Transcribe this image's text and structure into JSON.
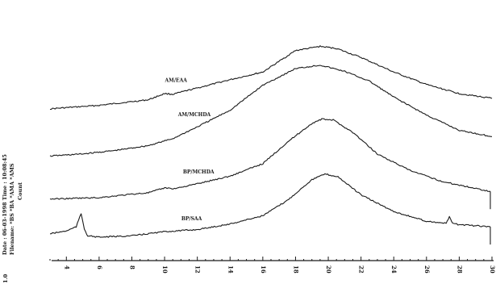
{
  "chart_data": {
    "type": "line",
    "title": "",
    "xlabel": "",
    "ylabel": "Count",
    "xlim": [
      3,
      30
    ],
    "x_ticks": [
      "4",
      "6",
      "8",
      "10",
      "12",
      "14",
      "16",
      "18",
      "20",
      "22",
      "24",
      "26",
      "28",
      "30"
    ],
    "y_tick_label": "1.0",
    "grid": false,
    "header_lines": [
      "Date : 06-03-1998  Time : 10:08:45",
      "Filename: *BS *BA *AMA *AMS"
    ],
    "series": [
      {
        "name": "AM/EAA",
        "label_x": 11.5,
        "x": [
          3,
          6,
          9,
          10,
          10.5,
          12,
          14,
          16,
          18,
          19.5,
          20.5,
          22,
          24,
          26,
          28,
          30
        ],
        "y": [
          9.6,
          9.85,
          10.25,
          10.7,
          10.65,
          11.1,
          11.7,
          12.25,
          13.8,
          14.1,
          13.95,
          13.3,
          12.25,
          11.35,
          10.7,
          10.35
        ]
      },
      {
        "name": "AM/MCHDA",
        "label_x": 12.3,
        "x": [
          3,
          5,
          7,
          9,
          10.5,
          12,
          14,
          16,
          18,
          19.5,
          21,
          22.5,
          24,
          26,
          28,
          30
        ],
        "y": [
          6.2,
          6.35,
          6.6,
          6.95,
          7.45,
          8.3,
          9.5,
          11.3,
          12.5,
          12.75,
          12.3,
          11.6,
          10.45,
          9.15,
          8.05,
          7.6
        ]
      },
      {
        "name": "BP/MCHDA",
        "label_x": 12.6,
        "x": [
          3,
          6,
          8,
          9,
          10,
          10.6,
          12,
          14,
          16,
          17.5,
          19,
          19.6,
          20.3,
          21.5,
          23,
          25,
          27,
          29.9
        ],
        "y": [
          3.1,
          3.2,
          3.45,
          3.55,
          3.9,
          3.85,
          4.2,
          4.75,
          5.65,
          7.2,
          8.55,
          8.85,
          8.8,
          7.9,
          6.35,
          5.15,
          4.35,
          3.65
        ]
      },
      {
        "name": "BP/SAA",
        "label_x": 12.5,
        "x": [
          3,
          4,
          4.6,
          4.9,
          5.1,
          5.3,
          6,
          8,
          10,
          12,
          14,
          16,
          17.5,
          19,
          19.8,
          20.6,
          22,
          24,
          26,
          27.2,
          27.4,
          27.6,
          28,
          29.9
        ],
        "y": [
          0.6,
          0.8,
          1.1,
          2.05,
          0.95,
          0.45,
          0.35,
          0.45,
          0.75,
          0.9,
          1.3,
          1.9,
          3.0,
          4.5,
          4.9,
          4.7,
          3.4,
          2.2,
          1.5,
          1.35,
          1.8,
          1.35,
          1.25,
          1.1
        ]
      }
    ]
  }
}
